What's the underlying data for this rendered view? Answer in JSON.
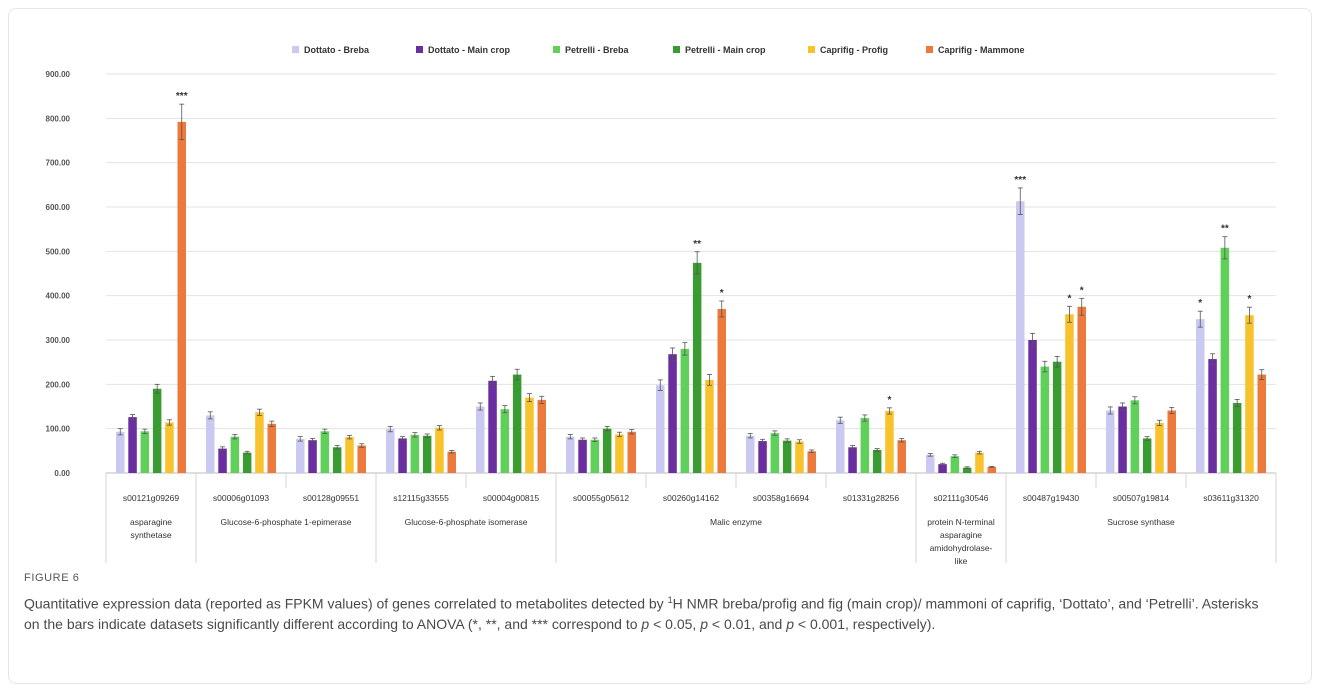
{
  "figure": {
    "label": "FIGURE 6",
    "caption_parts": [
      "Quantitative expression data (reported as FPKM values) of genes correlated to metabolites detected by ",
      "1",
      "H NMR breba/profig and fig (main crop)/ mammoni of caprifig, ‘Dottato’, and ‘Petrelli’. Asterisks on the bars indicate datasets significantly different according to ANOVA (*, **, and *** correspond to ",
      "p",
      " < 0.05, ",
      "p",
      " < 0.01, and ",
      "p",
      " < 0.001, respectively)."
    ]
  },
  "chart_data": {
    "type": "bar",
    "legend_position": "top",
    "grid": true,
    "ylim": [
      0,
      900
    ],
    "y_ticks": [
      "0.00",
      "100.00",
      "200.00",
      "300.00",
      "400.00",
      "500.00",
      "600.00",
      "700.00",
      "800.00",
      "900.00"
    ],
    "categories": [
      "s00121g09269",
      "s00006g01093",
      "s00128g09551",
      "s12115g33555",
      "s00004g00815",
      "s00055g05612",
      "s00260g14162",
      "s00358g16694",
      "s01331g28256",
      "s02111g30546",
      "s00487g19430",
      "s00507g19814",
      "s03611g31320"
    ],
    "groups": [
      {
        "label": "asparagine synthetase",
        "lines": [
          "asparagine",
          "synthetase"
        ],
        "start": 0,
        "end": 0
      },
      {
        "label": "Glucose-6-phosphate 1-epimerase",
        "lines": [
          "Glucose-6-phosphate 1-epimerase"
        ],
        "start": 1,
        "end": 2
      },
      {
        "label": "Glucose-6-phosphate isomerase",
        "lines": [
          "Glucose-6-phosphate isomerase"
        ],
        "start": 3,
        "end": 4
      },
      {
        "label": "Malic enzyme",
        "lines": [
          "Malic enzyme"
        ],
        "start": 5,
        "end": 8
      },
      {
        "label": "protein N-terminal asparagine amidohydrolase-like",
        "lines": [
          "protein N-terminal",
          "asparagine",
          "amidohydrolase-",
          "like"
        ],
        "start": 9,
        "end": 9
      },
      {
        "label": "Sucrose synthase",
        "lines": [
          "Sucrose synthase"
        ],
        "start": 10,
        "end": 12
      }
    ],
    "series": [
      {
        "name": "Dottato - Breba",
        "color": "#c9c9f2",
        "values": [
          93,
          130,
          77,
          99,
          150,
          82,
          198,
          84,
          119,
          41,
          613,
          141,
          347
        ],
        "errors": [
          7,
          8,
          5,
          6,
          8,
          5,
          12,
          5,
          7,
          3,
          30,
          8,
          18
        ]
      },
      {
        "name": "Dottato - Main crop",
        "color": "#6a2ea0",
        "values": [
          126,
          55,
          74,
          78,
          208,
          75,
          268,
          72,
          58,
          20,
          300,
          150,
          257
        ],
        "errors": [
          6,
          4,
          4,
          4,
          10,
          4,
          14,
          4,
          4,
          2,
          15,
          8,
          12
        ]
      },
      {
        "name": "Petrelli - Breba",
        "color": "#5fd15a",
        "values": [
          94,
          82,
          94,
          86,
          144,
          75,
          280,
          90,
          124,
          38,
          240,
          164,
          508
        ],
        "errors": [
          5,
          5,
          5,
          5,
          8,
          4,
          14,
          5,
          7,
          3,
          12,
          8,
          25
        ]
      },
      {
        "name": "Petrelli - Main crop",
        "color": "#3a9b32",
        "values": [
          190,
          46,
          58,
          84,
          222,
          100,
          474,
          73,
          52,
          12,
          251,
          78,
          158
        ],
        "errors": [
          10,
          3,
          4,
          4,
          12,
          5,
          25,
          4,
          3,
          2,
          12,
          4,
          8
        ]
      },
      {
        "name": "Caprifig - Profig",
        "color": "#f7c22b",
        "values": [
          114,
          137,
          81,
          102,
          170,
          87,
          210,
          71,
          140,
          46,
          358,
          113,
          356
        ],
        "errors": [
          6,
          7,
          4,
          5,
          9,
          5,
          12,
          4,
          7,
          3,
          18,
          6,
          18
        ]
      },
      {
        "name": "Caprifig - Mammone",
        "color": "#ec7a3c",
        "values": [
          792,
          111,
          62,
          48,
          165,
          93,
          370,
          49,
          74,
          14,
          375,
          141,
          222
        ],
        "errors": [
          40,
          6,
          4,
          3,
          8,
          5,
          18,
          3,
          4,
          1,
          19,
          7,
          11
        ]
      }
    ],
    "annotations": [
      {
        "text": "***",
        "category": 0,
        "series": 5
      },
      {
        "text": "**",
        "category": 6,
        "series": 3
      },
      {
        "text": "*",
        "category": 6,
        "series": 5
      },
      {
        "text": "*",
        "category": 8,
        "series": 4
      },
      {
        "text": "***",
        "category": 10,
        "series": 0
      },
      {
        "text": "*",
        "category": 10,
        "series": 4
      },
      {
        "text": "*",
        "category": 10,
        "series": 5
      },
      {
        "text": "*",
        "category": 12,
        "series": 0
      },
      {
        "text": "**",
        "category": 12,
        "series": 2
      },
      {
        "text": "*",
        "category": 12,
        "series": 4
      }
    ]
  }
}
